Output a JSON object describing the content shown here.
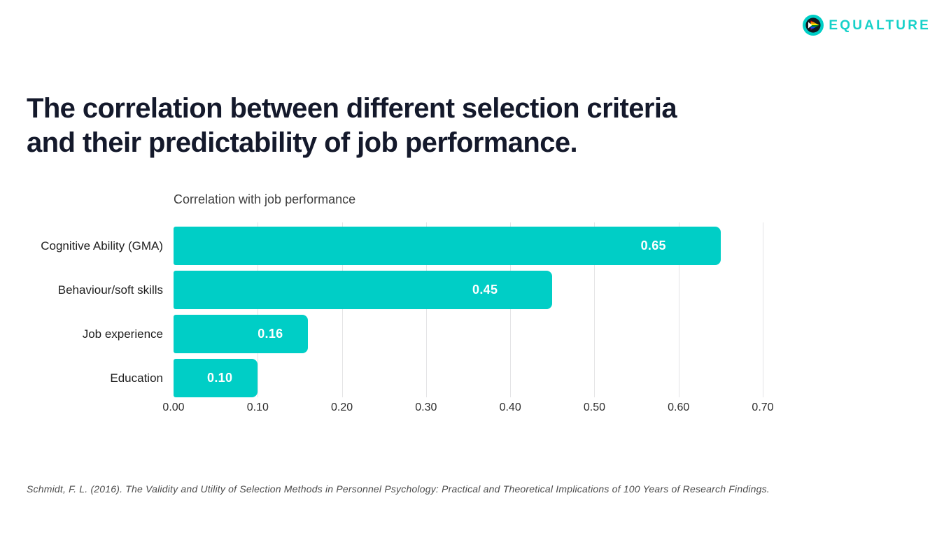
{
  "logo": {
    "brand": "EQUALTURE",
    "icon": "equalture-pride-chevron-circle-icon",
    "icon_colors": [
      "#00CEC6",
      "#101820",
      "#FFFFFF",
      "#E40303",
      "#FF8C00",
      "#FFED00",
      "#008026",
      "#004DFF",
      "#750787"
    ]
  },
  "heading": {
    "line1": "The correlation between different selection criteria",
    "line2": "and their predictability of job performance."
  },
  "chart_data": {
    "type": "bar",
    "orientation": "horizontal",
    "title": "Correlation with job performance",
    "categories": [
      "Cognitive Ability (GMA)",
      "Behaviour/soft skills",
      "Job experience",
      "Education"
    ],
    "values": [
      0.65,
      0.45,
      0.16,
      0.1
    ],
    "value_labels": [
      "0.65",
      "0.45",
      "0.16",
      "0.10"
    ],
    "x_ticks": [
      "0.00",
      "0.10",
      "0.20",
      "0.30",
      "0.40",
      "0.50",
      "0.60",
      "0.70"
    ],
    "xlim": [
      0,
      0.7
    ],
    "xlabel": "",
    "ylabel": "",
    "grid": "vertical-gridlines-every-0.10",
    "legend": "none",
    "bar_color": "#00CEC6",
    "value_label_color": "#FFFFFF"
  },
  "citation": "Schmidt, F. L. (2016). The Validity and Utility of Selection Methods in Personnel Psychology: Practical and Theoretical Implications of 100 Years of Research Findings.",
  "colors": {
    "accent_teal": "#00CEC6",
    "logo_teal": "#16D1C9",
    "heading_text": "#14192B",
    "category_text": "#1F1F1F",
    "axis_text": "#2E2E2E",
    "gridline": "#E4E4E6",
    "citation_text": "#4C4C4C",
    "background": "#FFFFFF"
  }
}
